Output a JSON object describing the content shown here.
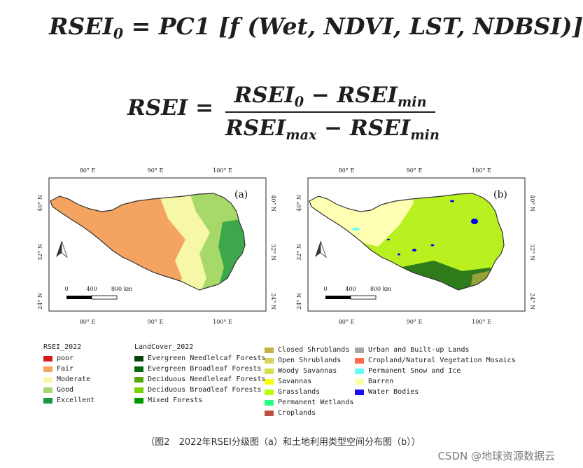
{
  "equations": {
    "eq1": {
      "lhs": "RSEI",
      "lhs_sub": "0",
      "rhs": "= PC1 [f (Wet, NDVI, LST, NDBSI)]"
    },
    "eq2": {
      "lhs": "RSEI =",
      "num": "RSEI",
      "num_sub": "0",
      "num_minus": " − RSEI",
      "num_sub2": "min",
      "den": "RSEI",
      "den_sub": "max",
      "den_minus": " − RSEI",
      "den_sub2": "min"
    }
  },
  "maps": {
    "panel_a": {
      "label": "(a)"
    },
    "panel_b": {
      "label": "(b)"
    },
    "lon_ticks": [
      "80° E",
      "90° E",
      "100° E"
    ],
    "lat_ticks": [
      "40° N",
      "32° N",
      "24° N"
    ],
    "scale": {
      "t0": "0",
      "t1": "400",
      "t2": "800 km"
    },
    "colors": {
      "fair": "#f4a460",
      "moderate": "#f7f7a8",
      "good": "#a6d96a",
      "excellent": "#1a9641",
      "grassland": "#b8f020",
      "barren": "#ffffb4",
      "water": "#0000ee",
      "forest": "#0b5e1a"
    }
  },
  "legends": {
    "rsei": {
      "title": "RSEI_2022",
      "items": [
        {
          "label": "poor",
          "color": "#d7191c"
        },
        {
          "label": "Fair",
          "color": "#f4a460"
        },
        {
          "label": "Moderate",
          "color": "#f7f7a8"
        },
        {
          "label": "Good",
          "color": "#a6d96a"
        },
        {
          "label": "Excellent",
          "color": "#1a9641"
        }
      ]
    },
    "landcover1": {
      "title": "LandCover_2022",
      "items": [
        {
          "label": "Evergreen Needlelcaf Forests",
          "color": "#05450a"
        },
        {
          "label": "Evergreen Broadleaf Forests",
          "color": "#086a10"
        },
        {
          "label": "Deciduous Needleleaf Forests",
          "color": "#54a708"
        },
        {
          "label": "Deciduous Broadleaf Forests",
          "color": "#78d203"
        },
        {
          "label": "Mixed Forests",
          "color": "#009900"
        }
      ]
    },
    "landcover2": {
      "items": [
        {
          "label": "Closed Shrublands",
          "color": "#c6b044"
        },
        {
          "label": "Open Shrublands",
          "color": "#dcd159"
        },
        {
          "label": "Woody Savannas",
          "color": "#dade48"
        },
        {
          "label": "Savannas",
          "color": "#fbff13"
        },
        {
          "label": "Grasslands",
          "color": "#b6ff05"
        },
        {
          "label": "Permanent Wetlands",
          "color": "#27ff87"
        },
        {
          "label": "Croplands",
          "color": "#c24f44"
        }
      ]
    },
    "landcover3": {
      "items": [
        {
          "label": "Urban and Built-up Lands",
          "color": "#a5a5a5"
        },
        {
          "label": "Cropland/Natural Vegetation Mosaics",
          "color": "#ff6d4c"
        },
        {
          "label": "Permanent Snow and Ice",
          "color": "#69fff8"
        },
        {
          "label": "Barren",
          "color": "#f9ffa4"
        },
        {
          "label": "Water Bodies",
          "color": "#1c0dff"
        }
      ]
    }
  },
  "caption": "（图2　2022年RSEI分级图（a）和土地利用类型空间分布图（b））",
  "watermark": "CSDN @地球资源数据云"
}
